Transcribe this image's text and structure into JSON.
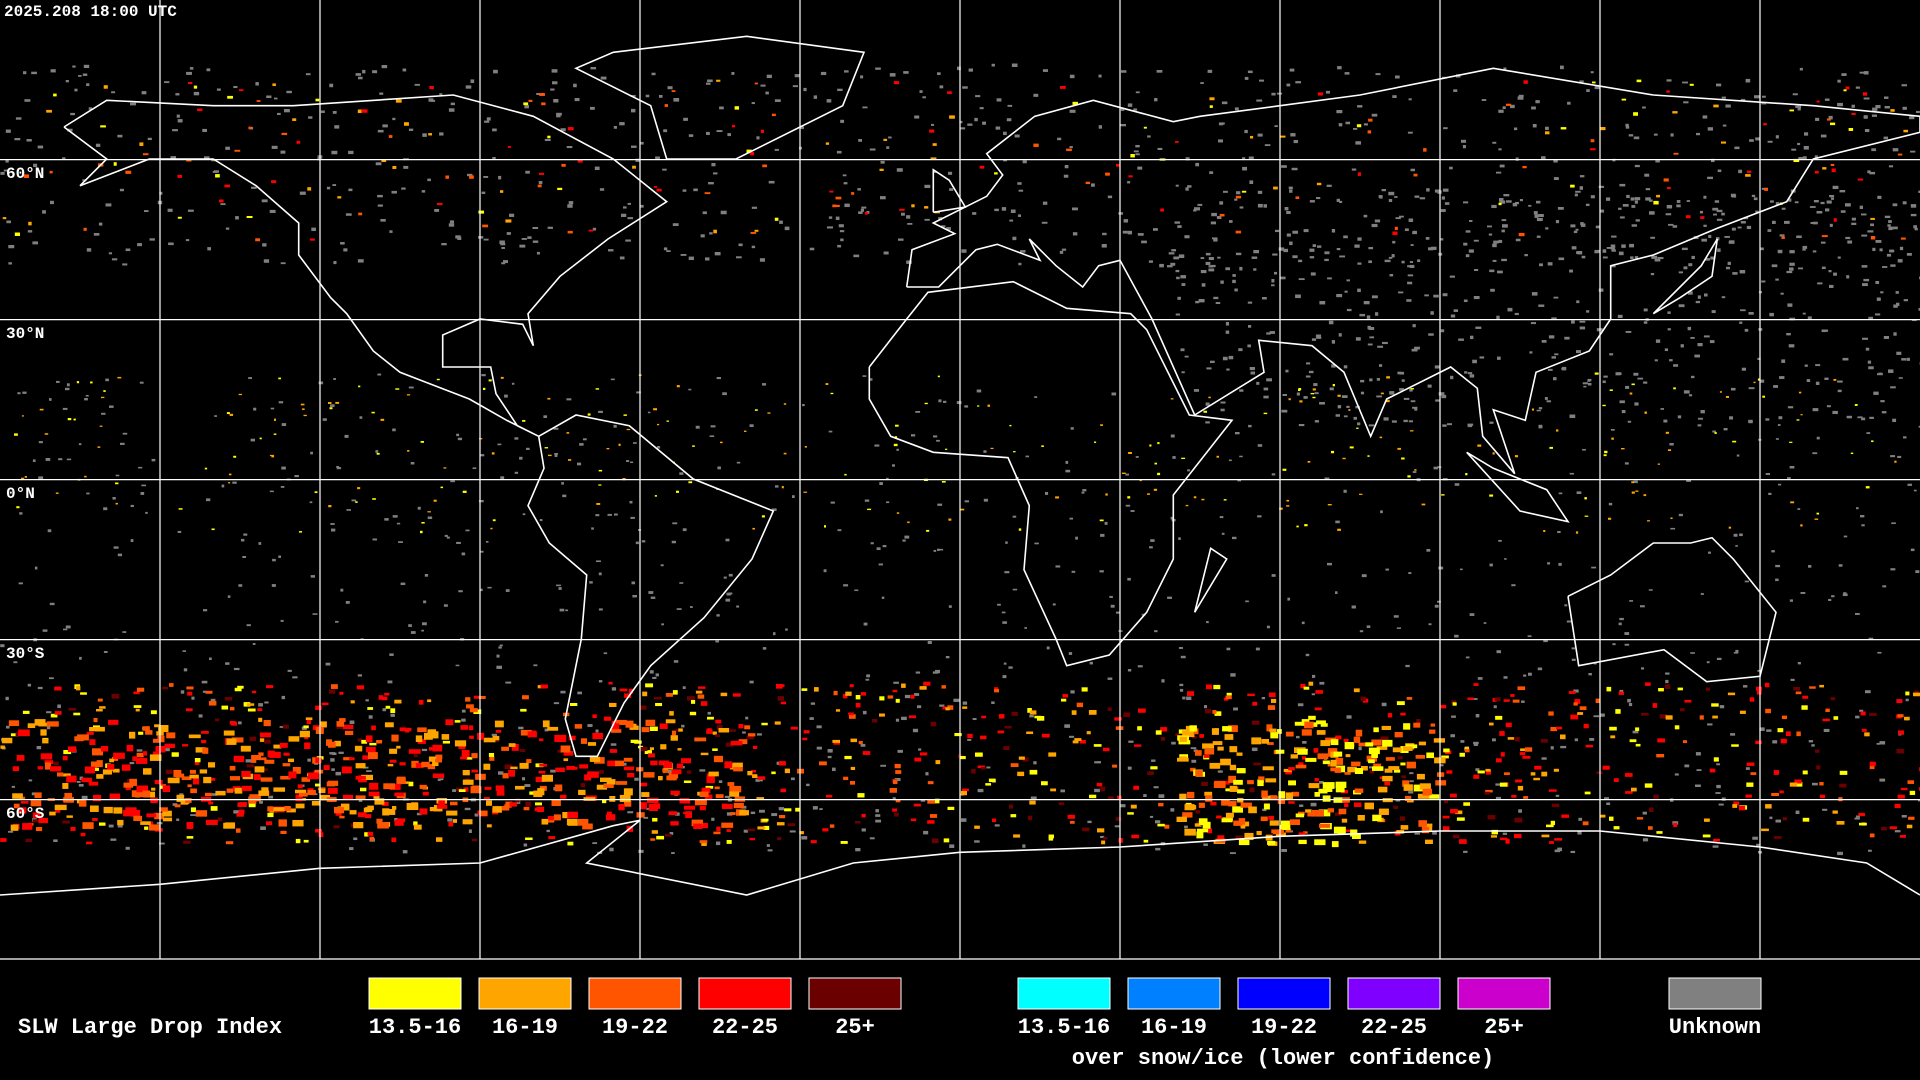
{
  "header": {
    "timestamp": "2025.208 18:00 UTC"
  },
  "map": {
    "latitude_labels": [
      "60°N",
      "30°N",
      "0°N",
      "30°S",
      "60°S"
    ]
  },
  "legend": {
    "title": "SLW Large Drop Index",
    "items": [
      {
        "label": "13.5-16",
        "color": "#ffff00"
      },
      {
        "label": "16-19",
        "color": "#ffa500"
      },
      {
        "label": "19-22",
        "color": "#ff5500"
      },
      {
        "label": "22-25",
        "color": "#ff0000"
      },
      {
        "label": "25+",
        "color": "#6b0000"
      }
    ],
    "snow_ice_items": [
      {
        "label": "13.5-16",
        "color": "#00ffff"
      },
      {
        "label": "16-19",
        "color": "#0080ff"
      },
      {
        "label": "19-22",
        "color": "#0000ff"
      },
      {
        "label": "22-25",
        "color": "#8000ff"
      },
      {
        "label": "25+",
        "color": "#cc00cc"
      }
    ],
    "snow_ice_note": "over snow/ice (lower confidence)",
    "unknown": {
      "label": "Unknown",
      "color": "#808080"
    }
  }
}
